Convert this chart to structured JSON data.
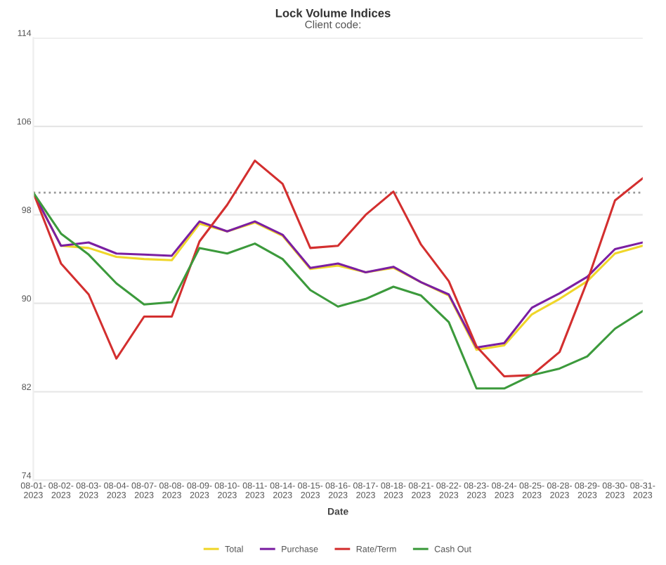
{
  "chart_data": {
    "type": "line",
    "title": "Lock Volume Indices",
    "subtitle": "Client code:",
    "xlabel": "Date",
    "categories": [
      "08-01-2023",
      "08-02-2023",
      "08-03-2023",
      "08-04-2023",
      "08-07-2023",
      "08-08-2023",
      "08-09-2023",
      "08-10-2023",
      "08-11-2023",
      "08-14-2023",
      "08-15-2023",
      "08-16-2023",
      "08-17-2023",
      "08-18-2023",
      "08-21-2023",
      "08-22-2023",
      "08-23-2023",
      "08-24-2023",
      "08-25-2023",
      "08-28-2023",
      "08-29-2023",
      "08-30-2023",
      "08-31-2023"
    ],
    "series": [
      {
        "name": "Total",
        "color": "#f0d62a",
        "values": [
          100,
          95.2,
          95.0,
          94.2,
          94.0,
          93.9,
          97.2,
          96.5,
          97.3,
          96.1,
          93.1,
          93.4,
          92.8,
          93.2,
          91.9,
          90.7,
          85.8,
          86.2,
          89.0,
          90.4,
          92.0,
          94.5,
          95.2
        ]
      },
      {
        "name": "Purchase",
        "color": "#7b1fa2",
        "values": [
          100,
          95.2,
          95.5,
          94.5,
          94.4,
          94.3,
          97.4,
          96.5,
          97.4,
          96.2,
          93.2,
          93.6,
          92.8,
          93.3,
          91.9,
          90.8,
          86.0,
          86.4,
          89.6,
          90.9,
          92.4,
          94.9,
          95.5
        ]
      },
      {
        "name": "Rate/Term",
        "color": "#d32f2f",
        "values": [
          100,
          93.6,
          90.8,
          85.0,
          88.8,
          88.8,
          95.6,
          98.9,
          102.9,
          100.8,
          95.0,
          95.2,
          98.0,
          100.1,
          95.3,
          92.0,
          86.1,
          83.4,
          83.5,
          85.6,
          92.0,
          99.3,
          101.3
        ]
      },
      {
        "name": "Cash Out",
        "color": "#3c9a3c",
        "values": [
          100,
          96.3,
          94.4,
          91.8,
          89.9,
          90.1,
          95.0,
          94.5,
          95.4,
          94.0,
          91.2,
          89.7,
          90.4,
          91.5,
          90.7,
          88.3,
          82.3,
          82.3,
          83.5,
          84.1,
          85.2,
          87.7,
          89.3
        ]
      }
    ],
    "ylim": [
      74,
      114
    ],
    "yticks": [
      74,
      82,
      90,
      98,
      106,
      114
    ],
    "ref_lines": [
      {
        "axis": "y",
        "value": 100,
        "color": "#999999",
        "line_style": "dotted"
      }
    ],
    "grid": "y",
    "legend": "bottom",
    "marker": "none",
    "line_style": "solid"
  }
}
